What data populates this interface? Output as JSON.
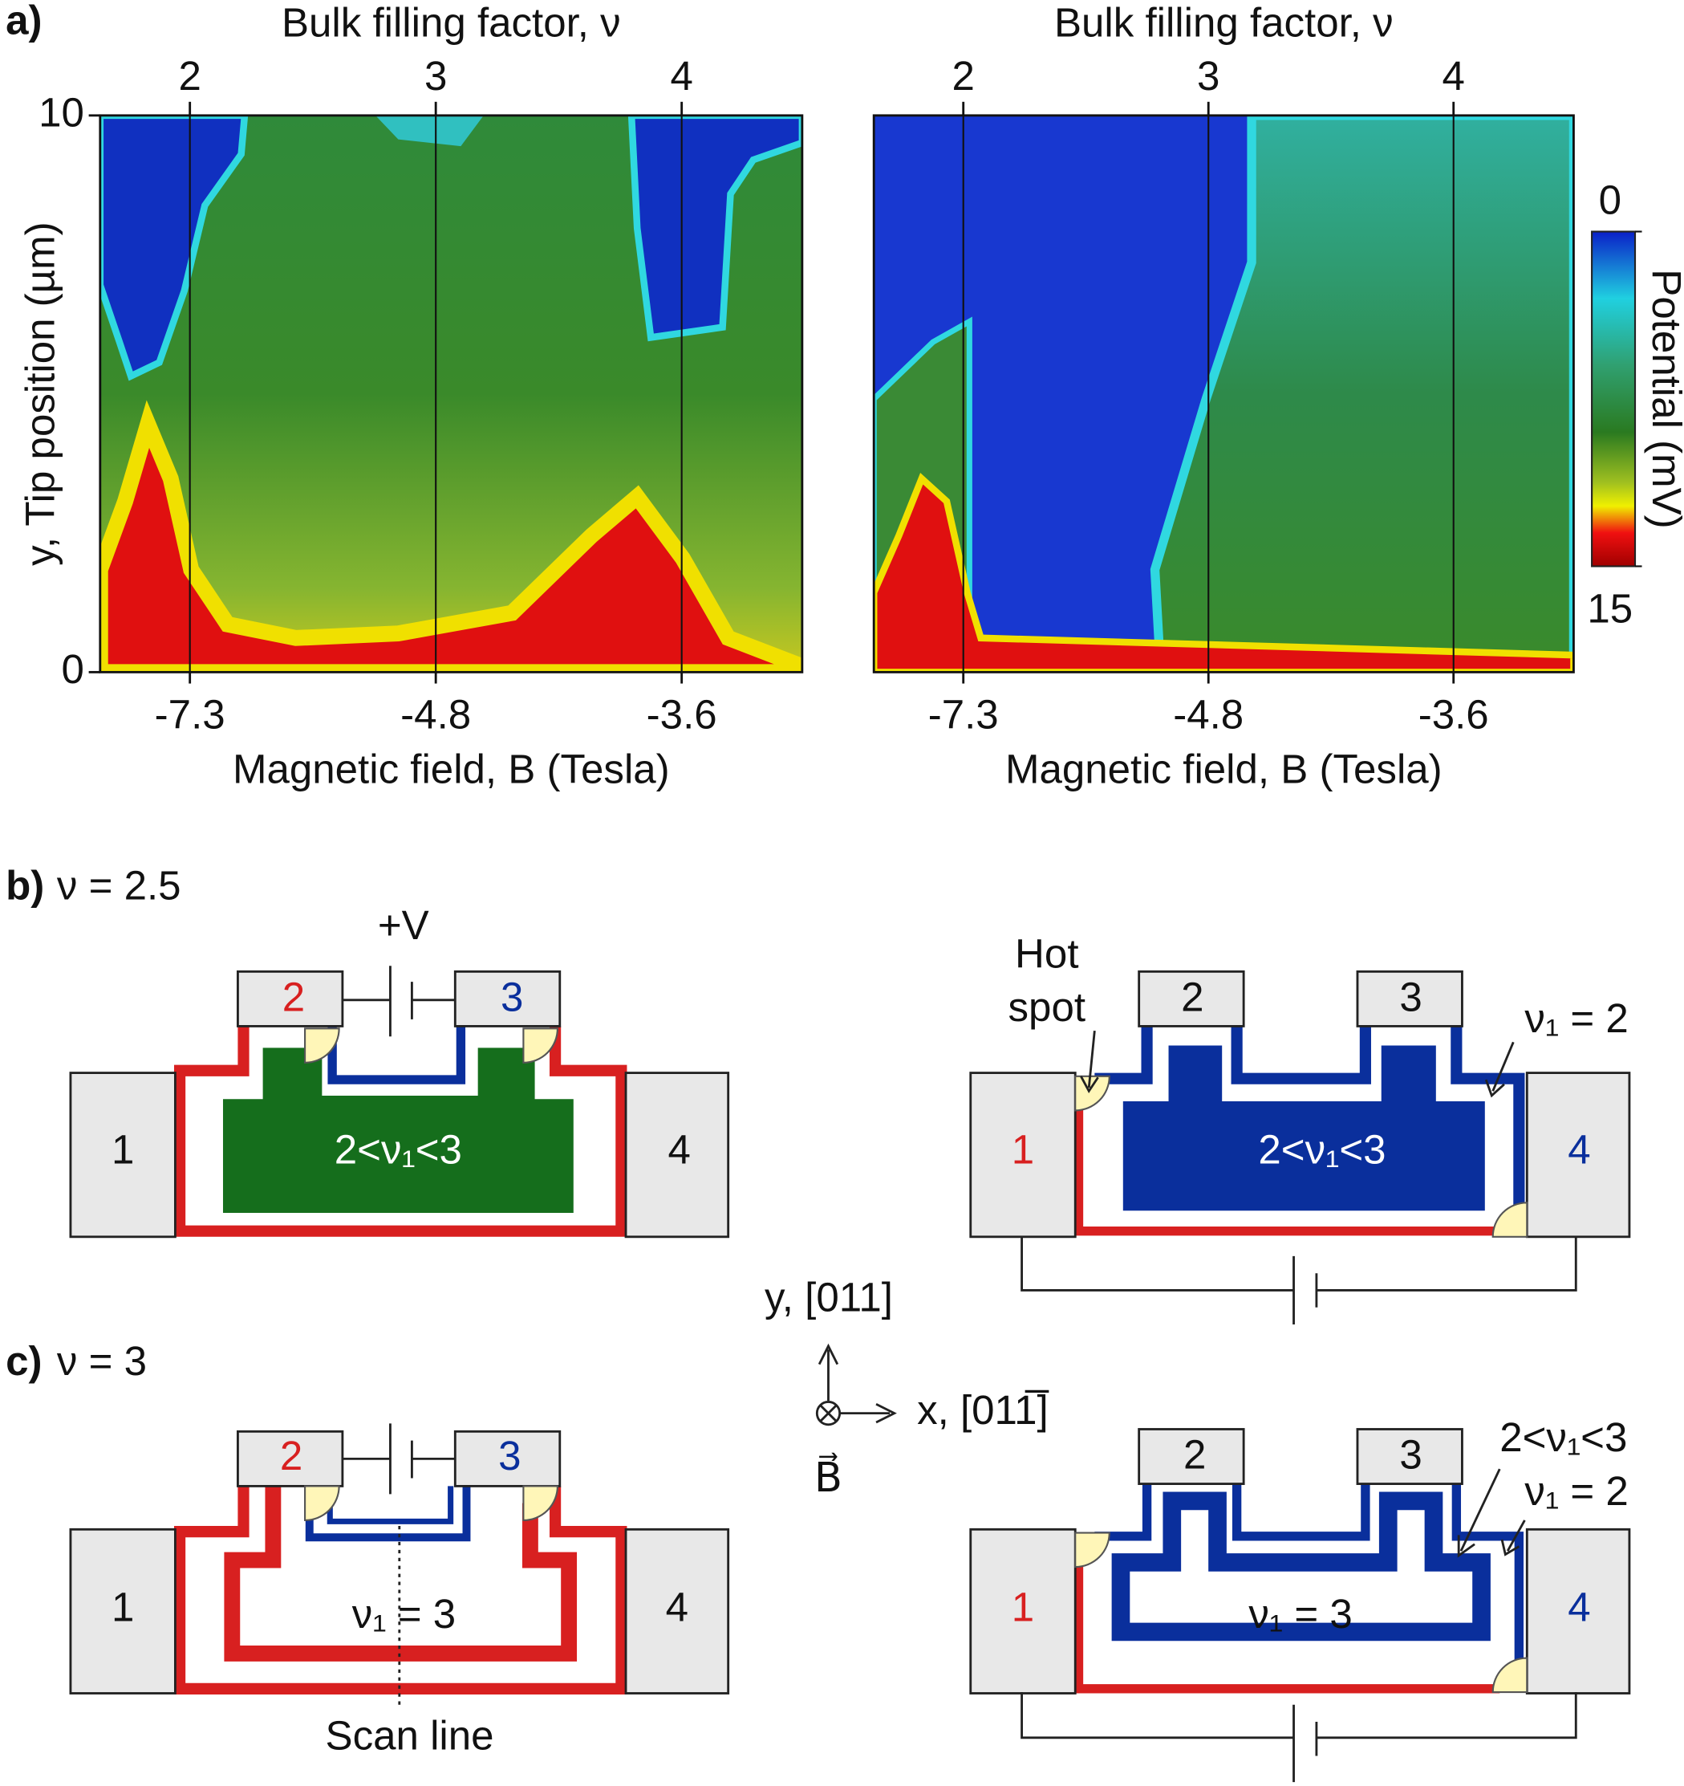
{
  "panel_a": {
    "label": "a)"
  },
  "chart_data": [
    {
      "type": "heatmap",
      "top_axis_label": "Bulk filling factor, ν",
      "xlabel": "Magnetic field, B (Tesla)",
      "ylabel": "y, Tip position (µm)",
      "xlim": [
        1.635,
        4.49
      ],
      "xticks": [
        2,
        3,
        4
      ],
      "x_bottom_tick_labels": [
        "-7.3",
        "-4.8",
        "-3.6"
      ],
      "ylim": [
        0,
        10
      ],
      "yticks": [
        0,
        10
      ]
    },
    {
      "type": "heatmap",
      "top_axis_label": "Bulk filling factor, ν",
      "xlabel": "Magnetic field, B (Tesla)",
      "xlim": [
        1.635,
        4.49
      ],
      "xticks": [
        2,
        3,
        4
      ],
      "x_bottom_tick_labels": [
        "-7.3",
        "-4.8",
        "-3.6"
      ],
      "colorbar": {
        "label": "Potential (mV)",
        "lim": [
          0,
          15
        ],
        "ticks": [
          0,
          15
        ]
      }
    }
  ],
  "panel_b": {
    "label": "b)",
    "condition": "ν = 2.5",
    "left": {
      "contacts": [
        "1",
        "2",
        "3",
        "4"
      ],
      "bias": "+V",
      "region": "2<ν₁<3"
    },
    "right": {
      "contacts": [
        "1",
        "2",
        "3",
        "4"
      ],
      "region": "2<ν₁<3",
      "hot_spot": [
        "Hot",
        "spot"
      ],
      "edge_label": "ν₁ = 2"
    }
  },
  "panel_c": {
    "label": "c)",
    "condition": "ν = 3",
    "left": {
      "contacts": [
        "1",
        "2",
        "3",
        "4"
      ],
      "region": "ν₁ = 3",
      "scan_line": "Scan line"
    },
    "right": {
      "contacts": [
        "1",
        "2",
        "3",
        "4"
      ],
      "region": "ν₁ = 3",
      "edge_labels": [
        "2<ν₁<3",
        "ν₁ = 2"
      ]
    }
  },
  "axes": {
    "y": "y, [011]",
    "x": "x, [011̅]",
    "b": "B⃗"
  }
}
